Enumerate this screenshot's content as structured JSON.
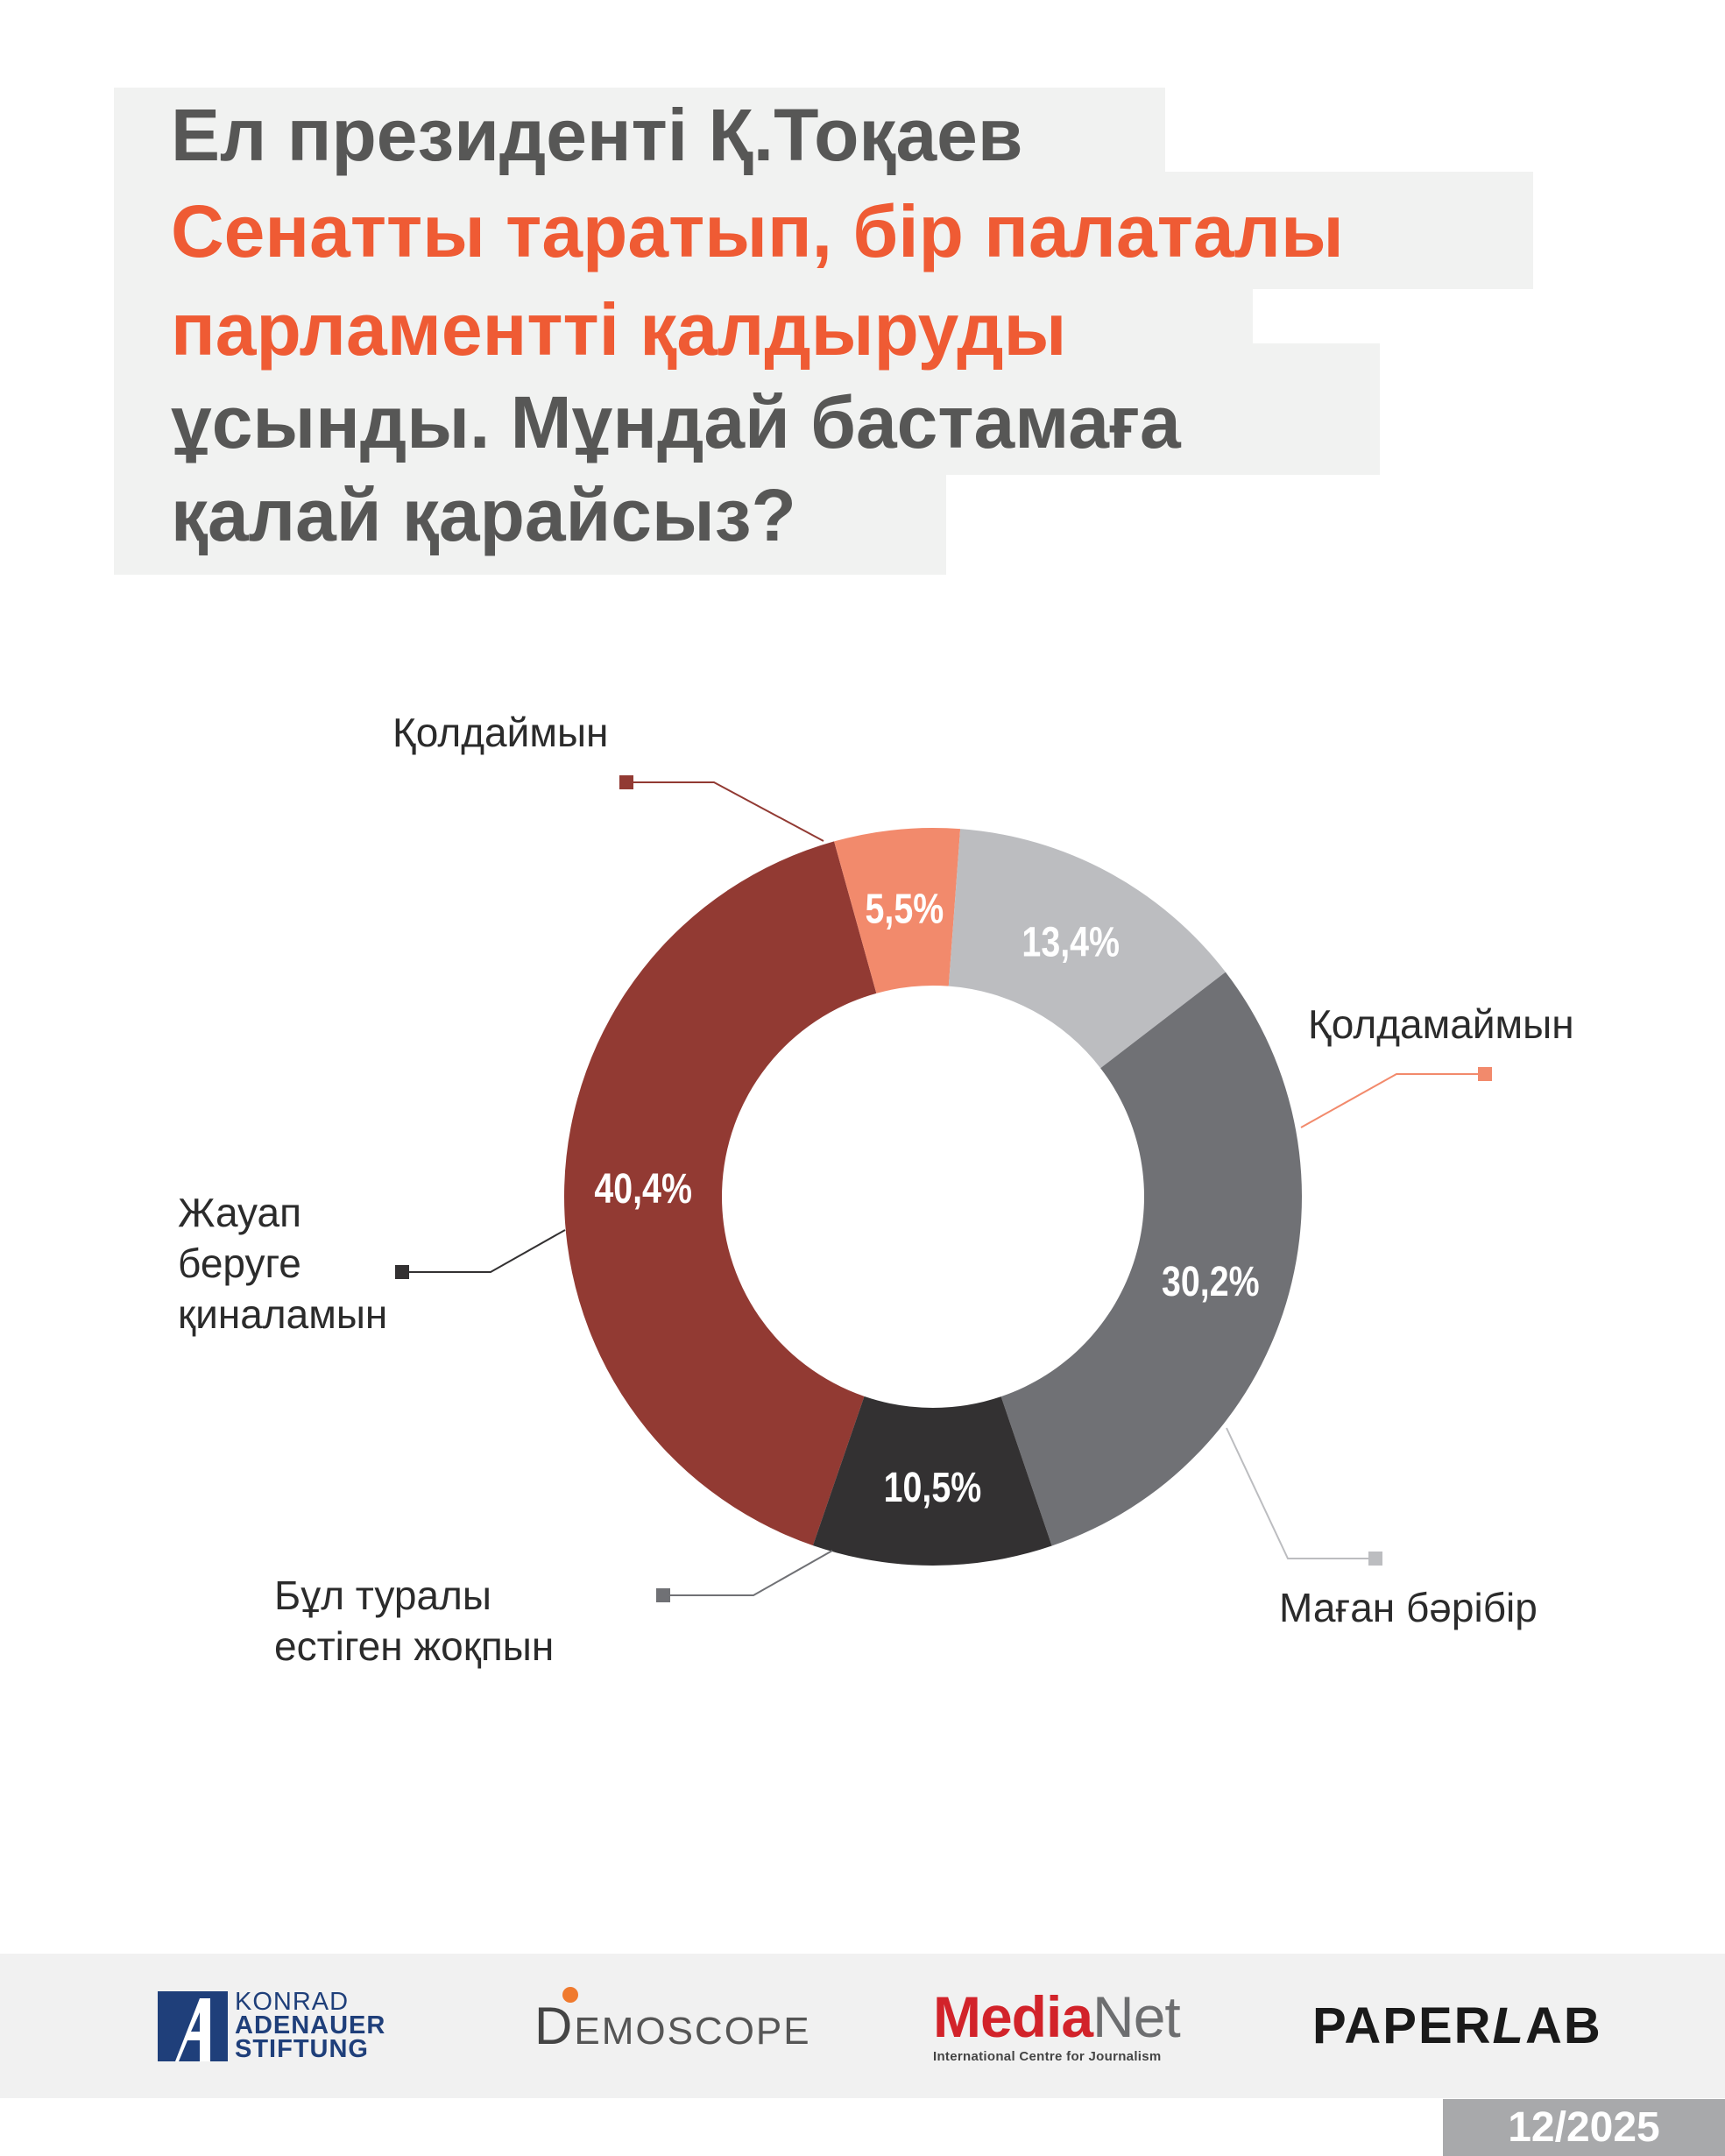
{
  "title": {
    "line1": "Ел президенті Қ.Тоқаев",
    "line2": "Сенатты таратып, бір палаталы",
    "line3": "парламентті қалдыруды",
    "line4": "ұсынды. Мұндай бастамаға",
    "line5": "қалай қарайсыз?"
  },
  "colors": {
    "support": "#923a33",
    "oppose": "#f28a6c",
    "indifferent": "#bcbdc0",
    "not_heard": "#707175",
    "hard_to_answer": "#333132",
    "accent": "#ef5b34"
  },
  "chart_data": {
    "type": "pie",
    "donut": true,
    "title": "",
    "slices": [
      {
        "label": "Қолдаймын",
        "value": 40.4,
        "display": "40,4%"
      },
      {
        "label": "Қолдамаймын",
        "value": 5.5,
        "display": "5,5%"
      },
      {
        "label": "Маған бәрібір",
        "value": 13.4,
        "display": "13,4%"
      },
      {
        "label": "Бұл туралы естіген жоқпын",
        "value": 30.2,
        "display": "30,2%"
      },
      {
        "label": "Жауап беруге қиналамын",
        "value": 10.5,
        "display": "10,5%"
      }
    ],
    "callout_lines": {
      "support": [
        "Қолдаймын"
      ],
      "oppose": [
        "Қолдамаймын"
      ],
      "indifferent": [
        "Маған бәрібір"
      ],
      "not_heard": [
        "Бұл туралы",
        "естіген жоқпын"
      ],
      "hard_to_answer": [
        "Жауап",
        "беруге",
        "қиналамын"
      ]
    }
  },
  "footer": {
    "kas": {
      "line1": "KONRAD",
      "line2": "ADENAUER",
      "line3": "STIFTUNG"
    },
    "demoscope": {
      "first": "D",
      "rest": "EMOSCOPE"
    },
    "medianet": {
      "media": "Media",
      "net": "Net",
      "sub": "International Centre for Journalism"
    },
    "paperlab": {
      "paper": "PAPER",
      "l": "L",
      "ab": "AB"
    },
    "date": "12/2025"
  }
}
